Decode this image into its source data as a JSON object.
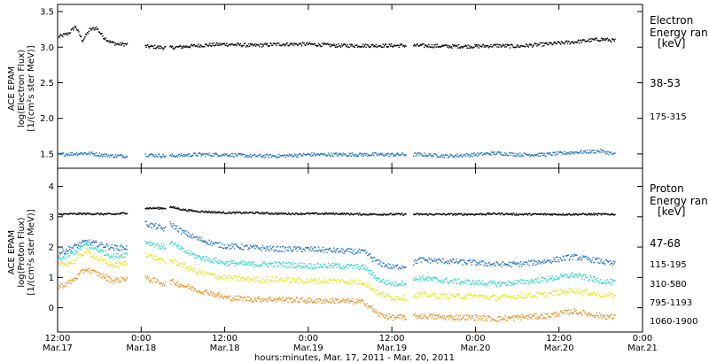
{
  "chart_data": [
    {
      "type": "scatter",
      "panel": "electron",
      "ylabel_lines": [
        "ACE EPAM",
        "log(Electron Flux)",
        "[1/(cm²s ster MeV)]"
      ],
      "xlim_hours": [
        0,
        84
      ],
      "ylim": [
        1.3,
        3.6
      ],
      "yticks": [
        1.5,
        2.0,
        2.5,
        3.0,
        3.5
      ],
      "ytick_labels": [
        "1.5",
        "2.0",
        "2.5",
        "3.0",
        "3.5"
      ],
      "legend_title_lines": [
        "Electron",
        "Energy ran",
        "[keV]"
      ],
      "gaps_hours": [
        [
          10,
          12.5
        ],
        [
          15.5,
          16
        ],
        [
          50,
          51
        ]
      ],
      "series": [
        {
          "name": "38-53",
          "color": "#000000",
          "x_hours": [
            0,
            1.5,
            2.5,
            3.5,
            4.5,
            5.5,
            6.5,
            7.5,
            8.5,
            9.5,
            12.5,
            15.5,
            16,
            20,
            24,
            28,
            32,
            36,
            40,
            44,
            48,
            52,
            56,
            60,
            63,
            66,
            70,
            74,
            78,
            80
          ],
          "y": [
            3.15,
            3.2,
            3.3,
            3.1,
            3.25,
            3.28,
            3.15,
            3.08,
            3.05,
            3.05,
            3.02,
            3.0,
            3.0,
            3.03,
            3.05,
            3.03,
            3.05,
            3.05,
            3.03,
            3.03,
            3.03,
            3.03,
            3.02,
            3.02,
            3.03,
            3.02,
            3.05,
            3.08,
            3.12,
            3.1
          ]
        },
        {
          "name": "175-315",
          "color": "#2472c8",
          "x_hours": [
            0,
            4,
            8,
            10,
            12.5,
            15.5,
            16,
            20,
            24,
            28,
            32,
            36,
            40,
            44,
            48,
            52,
            56,
            60,
            63,
            66,
            70,
            74,
            78,
            80
          ],
          "y": [
            1.5,
            1.52,
            1.48,
            1.48,
            1.5,
            1.48,
            1.48,
            1.5,
            1.5,
            1.48,
            1.48,
            1.5,
            1.5,
            1.5,
            1.5,
            1.5,
            1.48,
            1.5,
            1.52,
            1.5,
            1.5,
            1.53,
            1.55,
            1.5
          ]
        }
      ]
    },
    {
      "type": "scatter",
      "panel": "proton",
      "ylabel_lines": [
        "ACE EPAM",
        "log(Proton Flux)",
        "[1/(cm²s ster MeV)]"
      ],
      "xlim_hours": [
        0,
        84
      ],
      "ylim": [
        -0.8,
        4.6
      ],
      "yticks": [
        0,
        1,
        2,
        3,
        4
      ],
      "ytick_labels": [
        "0",
        "1",
        "2",
        "3",
        "4"
      ],
      "legend_title_lines": [
        "Proton",
        "Energy ran",
        "[keV]"
      ],
      "gaps_hours": [
        [
          10,
          12.5
        ],
        [
          15.5,
          16
        ],
        [
          50,
          51
        ]
      ],
      "series": [
        {
          "name": "47-68",
          "color": "#000000",
          "x_hours": [
            0,
            4,
            8,
            10,
            12.5,
            15.5,
            16,
            18,
            20,
            24,
            28,
            32,
            36,
            40,
            44,
            48,
            52,
            56,
            60,
            63,
            66,
            70,
            74,
            78,
            80
          ],
          "y": [
            3.1,
            3.12,
            3.1,
            3.15,
            3.3,
            3.3,
            3.35,
            3.25,
            3.2,
            3.15,
            3.15,
            3.12,
            3.12,
            3.12,
            3.1,
            3.1,
            3.1,
            3.1,
            3.1,
            3.12,
            3.1,
            3.1,
            3.1,
            3.1,
            3.1
          ]
        },
        {
          "name": "115-195",
          "color": "#2472c8",
          "x_hours": [
            0,
            2,
            4,
            6,
            8,
            10,
            12.5,
            15.5,
            16,
            18,
            20,
            22,
            24,
            28,
            32,
            36,
            40,
            44,
            46,
            48,
            50,
            52,
            56,
            60,
            63,
            66,
            70,
            74,
            78,
            80
          ],
          "y": [
            1.8,
            2.0,
            2.2,
            2.1,
            2.0,
            2.0,
            2.8,
            2.6,
            2.8,
            2.5,
            2.3,
            2.15,
            2.05,
            2.0,
            1.95,
            1.95,
            1.9,
            1.85,
            1.5,
            1.35,
            1.4,
            1.6,
            1.55,
            1.5,
            1.45,
            1.45,
            1.55,
            1.7,
            1.55,
            1.45
          ]
        },
        {
          "name": "310-580",
          "color": "#26d9c8",
          "x_hours": [
            0,
            2,
            4,
            6,
            8,
            10,
            12.5,
            15.5,
            16,
            18,
            20,
            22,
            24,
            28,
            32,
            36,
            40,
            44,
            46,
            48,
            50,
            52,
            56,
            60,
            63,
            66,
            70,
            74,
            78,
            80
          ],
          "y": [
            1.6,
            1.8,
            2.1,
            1.9,
            1.7,
            1.8,
            2.2,
            2.0,
            2.2,
            1.9,
            1.7,
            1.6,
            1.5,
            1.45,
            1.45,
            1.4,
            1.4,
            1.35,
            0.95,
            0.8,
            0.85,
            1.0,
            0.9,
            0.85,
            0.8,
            0.85,
            0.95,
            1.1,
            0.9,
            0.85
          ]
        },
        {
          "name": "795-1193",
          "color": "#e6e619",
          "x_hours": [
            0,
            2,
            4,
            6,
            8,
            10,
            12.5,
            15.5,
            16,
            18,
            20,
            22,
            24,
            28,
            32,
            36,
            40,
            44,
            46,
            48,
            50,
            52,
            56,
            60,
            63,
            66,
            70,
            74,
            78,
            80
          ],
          "y": [
            1.4,
            1.5,
            1.9,
            1.6,
            1.4,
            1.5,
            1.8,
            1.5,
            1.6,
            1.4,
            1.2,
            1.1,
            1.0,
            0.95,
            0.95,
            0.9,
            0.9,
            0.85,
            0.5,
            0.35,
            0.35,
            0.45,
            0.4,
            0.4,
            0.35,
            0.4,
            0.45,
            0.6,
            0.45,
            0.4
          ]
        },
        {
          "name": "1060-1900",
          "color": "#f08c1e",
          "x_hours": [
            0,
            2,
            4,
            6,
            8,
            10,
            12.5,
            15.5,
            16,
            18,
            20,
            22,
            24,
            28,
            32,
            36,
            40,
            44,
            46,
            48,
            50,
            52,
            56,
            60,
            63,
            66,
            70,
            74,
            78,
            80
          ],
          "y": [
            0.7,
            0.9,
            1.3,
            1.1,
            0.9,
            1.0,
            1.0,
            0.8,
            0.9,
            0.75,
            0.6,
            0.5,
            0.35,
            0.3,
            0.3,
            0.25,
            0.25,
            0.2,
            -0.2,
            -0.3,
            -0.3,
            -0.25,
            -0.3,
            -0.3,
            -0.35,
            -0.3,
            -0.25,
            -0.1,
            -0.25,
            -0.3
          ]
        }
      ]
    }
  ],
  "x_axis": {
    "ticks_hours": [
      0,
      12,
      24,
      36,
      48,
      60,
      72,
      84
    ],
    "tick_time_labels": [
      "12:00",
      "0:00",
      "12:00",
      "0:00",
      "12:00",
      "0:00",
      "12:00",
      "0:00"
    ],
    "tick_date_labels": [
      "Mar.17",
      "Mar.18",
      "Mar.18",
      "Mar.19",
      "Mar.19",
      "Mar.20",
      "Mar.20",
      "Mar.21"
    ],
    "xlabel": "hours:minutes, Mar. 17, 2011 - Mar. 20, 2011"
  }
}
